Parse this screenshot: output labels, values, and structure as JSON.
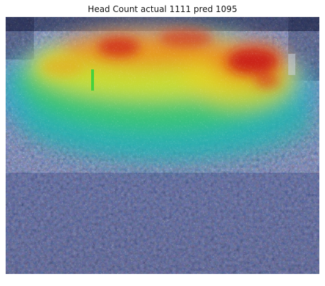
{
  "title": "Head Count actual 1111 pred 1095",
  "image": {
    "subject": "crowd-density-heatmap-overlay",
    "colors": {
      "low": "#1c2a7a",
      "mid_low": "#1a8fd0",
      "mid": "#22c28a",
      "mid_high": "#d8e12c",
      "high": "#e9661c",
      "peak": "#c21818"
    }
  }
}
